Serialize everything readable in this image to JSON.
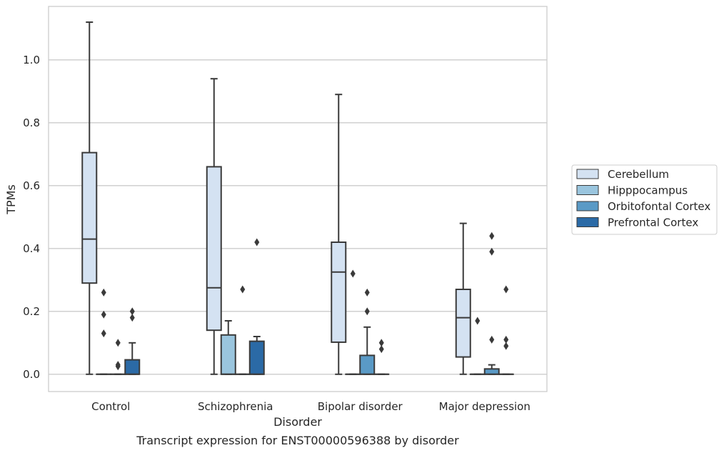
{
  "chart_data": {
    "type": "box",
    "caption": "Transcript expression for ENST00000596388 by disorder",
    "xlabel": "Disorder",
    "ylabel": "TPMs",
    "ylim": [
      -0.055,
      1.17
    ],
    "yticks": [
      0.0,
      0.2,
      0.4,
      0.6,
      0.8,
      1.0
    ],
    "ytick_labels": [
      "0.0",
      "0.2",
      "0.4",
      "0.6",
      "0.8",
      "1.0"
    ],
    "grid": "horizontal",
    "legend_position": "right",
    "categories": [
      "Control",
      "Schizophrenia",
      "Bipolar disorder",
      "Major depression"
    ],
    "series": [
      {
        "name": "Cerebellum",
        "color": "#d4e2f2",
        "boxes": [
          {
            "whislo": 0.0,
            "q1": 0.29,
            "med": 0.43,
            "q3": 0.705,
            "whishi": 1.12,
            "fliers": []
          },
          {
            "whislo": 0.0,
            "q1": 0.14,
            "med": 0.275,
            "q3": 0.66,
            "whishi": 0.94,
            "fliers": []
          },
          {
            "whislo": 0.0,
            "q1": 0.102,
            "med": 0.325,
            "q3": 0.42,
            "whishi": 0.89,
            "fliers": []
          },
          {
            "whislo": 0.0,
            "q1": 0.055,
            "med": 0.18,
            "q3": 0.27,
            "whishi": 0.48,
            "fliers": []
          }
        ]
      },
      {
        "name": "Hipppocampus",
        "color": "#9ac5de",
        "boxes": [
          {
            "whislo": 0.0,
            "q1": 0.0,
            "med": 0.0,
            "q3": 0.0,
            "whishi": 0.0,
            "fliers": [
              0.26,
              0.19,
              0.13
            ]
          },
          {
            "whislo": 0.0,
            "q1": 0.0,
            "med": 0.0,
            "q3": 0.125,
            "whishi": 0.17,
            "fliers": []
          },
          {
            "whislo": 0.0,
            "q1": 0.0,
            "med": 0.0,
            "q3": 0.0,
            "whishi": 0.0,
            "fliers": [
              0.32
            ]
          },
          {
            "whislo": 0.0,
            "q1": 0.0,
            "med": 0.0,
            "q3": 0.0,
            "whishi": 0.0,
            "fliers": [
              0.17
            ]
          }
        ]
      },
      {
        "name": "Orbitofontal Cortex",
        "color": "#5a9ac6",
        "boxes": [
          {
            "whislo": 0.0,
            "q1": 0.0,
            "med": 0.0,
            "q3": 0.0,
            "whishi": 0.0,
            "fliers": [
              0.1,
              0.03,
              0.025
            ]
          },
          {
            "whislo": 0.0,
            "q1": 0.0,
            "med": 0.0,
            "q3": 0.0,
            "whishi": 0.0,
            "fliers": [
              0.27
            ]
          },
          {
            "whislo": 0.0,
            "q1": 0.0,
            "med": 0.0,
            "q3": 0.06,
            "whishi": 0.15,
            "fliers": [
              0.26,
              0.2
            ]
          },
          {
            "whislo": 0.0,
            "q1": 0.0,
            "med": 0.0,
            "q3": 0.017,
            "whishi": 0.03,
            "fliers": [
              0.44,
              0.39,
              0.11
            ]
          }
        ]
      },
      {
        "name": "Prefrontal Cortex",
        "color": "#2b6aa6",
        "boxes": [
          {
            "whislo": 0.0,
            "q1": 0.0,
            "med": 0.0,
            "q3": 0.046,
            "whishi": 0.1,
            "fliers": [
              0.2,
              0.18
            ]
          },
          {
            "whislo": 0.0,
            "q1": 0.0,
            "med": 0.0,
            "q3": 0.105,
            "whishi": 0.12,
            "fliers": [
              0.42
            ]
          },
          {
            "whislo": 0.0,
            "q1": 0.0,
            "med": 0.0,
            "q3": 0.0,
            "whishi": 0.0,
            "fliers": [
              0.1,
              0.08
            ]
          },
          {
            "whislo": 0.0,
            "q1": 0.0,
            "med": 0.0,
            "q3": 0.0,
            "whishi": 0.0,
            "fliers": [
              0.27,
              0.11,
              0.09
            ]
          }
        ]
      }
    ]
  }
}
